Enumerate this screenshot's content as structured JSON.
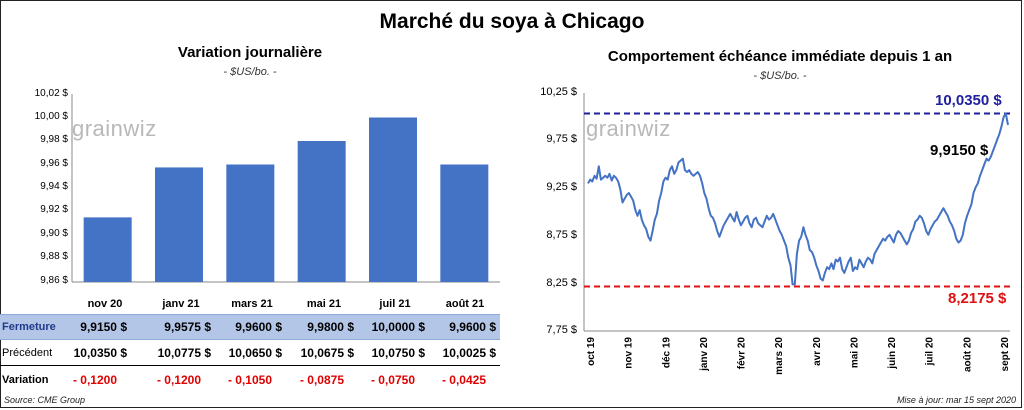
{
  "title": "Marché du soya à Chicago",
  "left_panel": {
    "title": "Variation  journalière",
    "unit": "- $US/bo. -",
    "watermark": "grainwiz",
    "y_ticks": [
      "10,02 $",
      "10,00 $",
      "9,98 $",
      "9,96 $",
      "9,94 $",
      "9,92 $",
      "9,90 $",
      "9,88 $",
      "9,86 $"
    ]
  },
  "right_panel": {
    "title": "Comportement  échéance immédiate depuis 1 an",
    "unit": "- $US/bo. -",
    "watermark": "grainwiz",
    "y_ticks": [
      "10,25 $",
      "9,75 $",
      "9,25 $",
      "8,75 $",
      "8,25 $",
      "7,75 $"
    ],
    "x_ticks": [
      "oct 19",
      "nov 19",
      "déc 19",
      "janv 20",
      "févr 20",
      "mars 20",
      "avr 20",
      "mai 20",
      "juin 20",
      "juil 20",
      "août 20",
      "sept 20"
    ],
    "high_label": "10,0350  $",
    "low_label": "8,2175  $",
    "last_label": "9,9150 $"
  },
  "table": {
    "rows": [
      {
        "label": "Fermeture",
        "values": [
          "9,9150  $",
          "9,9575  $",
          "9,9600  $",
          "9,9800  $",
          "10,0000  $",
          "9,9600  $"
        ]
      },
      {
        "label": "Précédent",
        "values": [
          "10,0350  $",
          "10,0775  $",
          "10,0650  $",
          "10,0675  $",
          "10,0750  $",
          "10,0025  $"
        ]
      },
      {
        "label": "Variation",
        "values": [
          "- 0,1200",
          "- 0,1200",
          "- 0,1050",
          "- 0,0875",
          "- 0,0750",
          "- 0,0425"
        ]
      }
    ]
  },
  "footer": {
    "source": "Source: CME Group",
    "updated": "Mise à jour: mar 15 sept 2020"
  },
  "colors": {
    "bar": "#4472c4",
    "line": "#4472c4",
    "high_line": "#1f1fa0",
    "low_line": "#e01010",
    "fermeture_bg": "#b4c6e7",
    "negative": "#e00000"
  },
  "chart_data": [
    {
      "type": "bar",
      "title": "Variation  journalière",
      "categories": [
        "nov 20",
        "janv 21",
        "mars 21",
        "mai 21",
        "juil 21",
        "août 21"
      ],
      "values": [
        9.915,
        9.9575,
        9.96,
        9.98,
        10.0,
        9.96
      ],
      "ylim": [
        9.86,
        10.02
      ],
      "grid": false
    },
    {
      "type": "line",
      "title": "Comportement  échéance immédiate depuis 1 an",
      "x_range": [
        "2019-09-16",
        "2020-09-15"
      ],
      "ylim": [
        7.75,
        10.25
      ],
      "reference_lines": [
        {
          "label": "10,0350  $",
          "value": 10.035,
          "style": "dashed",
          "color": "#1f1fa0"
        },
        {
          "label": "8,2175  $",
          "value": 8.2175,
          "style": "dashed",
          "color": "#e01010"
        }
      ],
      "series": [
        {
          "values": [
            9.3,
            9.34,
            9.32,
            9.38,
            9.35,
            9.48,
            9.34,
            9.36,
            9.38,
            9.36,
            9.4,
            9.33,
            9.38,
            9.36,
            9.32,
            9.24,
            9.1,
            9.14,
            9.18,
            9.2,
            9.16,
            9.12,
            9.02,
            8.96,
            9.02,
            8.92,
            8.86,
            8.82,
            8.74,
            8.7,
            8.8,
            8.92,
            8.98,
            9.12,
            9.2,
            9.32,
            9.36,
            9.34,
            9.44,
            9.48,
            9.4,
            9.44,
            9.52,
            9.54,
            9.56,
            9.44,
            9.42,
            9.44,
            9.4,
            9.38,
            9.4,
            9.42,
            9.38,
            9.3,
            9.2,
            9.14,
            9.04,
            8.96,
            8.94,
            8.88,
            8.8,
            8.74,
            8.8,
            8.86,
            8.9,
            8.94,
            8.98,
            8.94,
            8.9,
            9.0,
            8.92,
            8.86,
            8.9,
            8.94,
            8.96,
            8.88,
            8.84,
            8.92,
            8.94,
            8.88,
            8.86,
            8.84,
            8.9,
            8.96,
            8.92,
            8.94,
            8.98,
            8.92,
            8.86,
            8.8,
            8.76,
            8.7,
            8.64,
            8.52,
            8.44,
            8.24,
            8.24,
            8.56,
            8.7,
            8.74,
            8.84,
            8.76,
            8.7,
            8.6,
            8.58,
            8.52,
            8.44,
            8.38,
            8.3,
            8.28,
            8.36,
            8.42,
            8.4,
            8.46,
            8.4,
            8.5,
            8.48,
            8.52,
            8.4,
            8.36,
            8.42,
            8.48,
            8.52,
            8.38,
            8.42,
            8.4,
            8.5,
            8.46,
            8.42,
            8.48,
            8.52,
            8.5,
            8.46,
            8.56,
            8.6,
            8.64,
            8.68,
            8.72,
            8.7,
            8.74,
            8.76,
            8.72,
            8.68,
            8.76,
            8.8,
            8.78,
            8.74,
            8.7,
            8.66,
            8.7,
            8.78,
            8.82,
            8.9,
            8.92,
            8.96,
            8.94,
            8.88,
            8.8,
            8.76,
            8.82,
            8.86,
            8.9,
            8.92,
            8.96,
            9.0,
            9.04,
            9.0,
            8.96,
            8.9,
            8.86,
            8.8,
            8.72,
            8.68,
            8.7,
            8.76,
            8.88,
            8.96,
            9.02,
            9.08,
            9.2,
            9.26,
            9.3,
            9.38,
            9.44,
            9.5,
            9.56,
            9.54,
            9.58,
            9.64,
            9.7,
            9.76,
            9.82,
            9.9,
            10.0,
            10.035,
            9.915
          ]
        }
      ]
    }
  ]
}
